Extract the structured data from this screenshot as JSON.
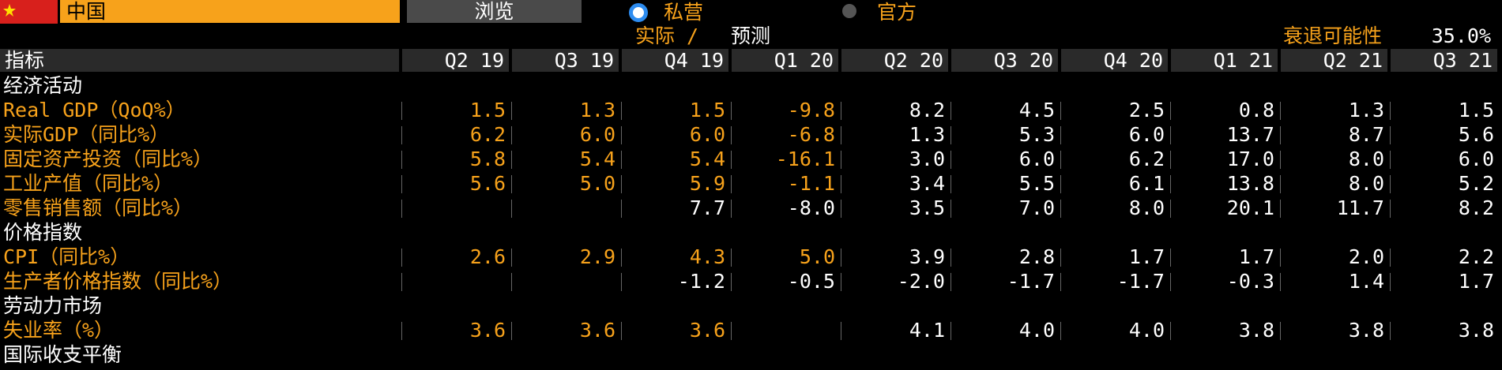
{
  "header": {
    "country": "中国",
    "browse": "浏览",
    "options": [
      "私营",
      "官方"
    ]
  },
  "subheader": {
    "actual": "实际 /",
    "forecast": "预测",
    "recession_label": "衰退可能性",
    "recession_value": "35.0%"
  },
  "table": {
    "actual_color": "#f7a21b",
    "forecast_color": "#ffffff",
    "columns": [
      "指标",
      "Q2 19",
      "Q3 19",
      "Q4 19",
      "Q1 20",
      "Q2 20",
      "Q3 20",
      "Q4 20",
      "Q1 21",
      "Q2 21",
      "Q3 21"
    ],
    "sections": [
      {
        "title": "经济活动",
        "rows": [
          {
            "label": "Real GDP（QoQ%）",
            "values": [
              "1.5",
              "1.3",
              "1.5",
              "-9.8",
              "8.2",
              "4.5",
              "2.5",
              "0.8",
              "1.3",
              "1.5"
            ],
            "actual": [
              true,
              true,
              true,
              true,
              false,
              false,
              false,
              false,
              false,
              false
            ]
          },
          {
            "label": "实际GDP（同比%）",
            "values": [
              "6.2",
              "6.0",
              "6.0",
              "-6.8",
              "1.3",
              "5.3",
              "6.0",
              "13.7",
              "8.7",
              "5.6"
            ],
            "actual": [
              true,
              true,
              true,
              true,
              false,
              false,
              false,
              false,
              false,
              false
            ]
          },
          {
            "label": "固定资产投资（同比%）",
            "values": [
              "5.8",
              "5.4",
              "5.4",
              "-16.1",
              "3.0",
              "6.0",
              "6.2",
              "17.0",
              "8.0",
              "6.0"
            ],
            "actual": [
              true,
              true,
              true,
              true,
              false,
              false,
              false,
              false,
              false,
              false
            ]
          },
          {
            "label": "工业产值（同比%）",
            "values": [
              "5.6",
              "5.0",
              "5.9",
              "-1.1",
              "3.4",
              "5.5",
              "6.1",
              "13.8",
              "8.0",
              "5.2"
            ],
            "actual": [
              true,
              true,
              true,
              true,
              false,
              false,
              false,
              false,
              false,
              false
            ]
          },
          {
            "label": "零售销售额（同比%）",
            "values": [
              null,
              null,
              "7.7",
              "-8.0",
              "3.5",
              "7.0",
              "8.0",
              "20.1",
              "11.7",
              "8.2"
            ],
            "actual": [
              false,
              false,
              false,
              false,
              false,
              false,
              false,
              false,
              false,
              false
            ]
          }
        ]
      },
      {
        "title": "价格指数",
        "rows": [
          {
            "label": "CPI（同比%）",
            "values": [
              "2.6",
              "2.9",
              "4.3",
              "5.0",
              "3.9",
              "2.8",
              "1.7",
              "1.7",
              "2.0",
              "2.2"
            ],
            "actual": [
              true,
              true,
              true,
              true,
              false,
              false,
              false,
              false,
              false,
              false
            ]
          },
          {
            "label": "生产者价格指数（同比%）",
            "values": [
              null,
              null,
              "-1.2",
              "-0.5",
              "-2.0",
              "-1.7",
              "-1.7",
              "-0.3",
              "1.4",
              "1.7"
            ],
            "actual": [
              false,
              false,
              false,
              false,
              false,
              false,
              false,
              false,
              false,
              false
            ]
          }
        ]
      },
      {
        "title": "劳动力市场",
        "rows": [
          {
            "label": "失业率（%）",
            "values": [
              "3.6",
              "3.6",
              "3.6",
              null,
              "4.1",
              "4.0",
              "4.0",
              "3.8",
              "3.8",
              "3.8"
            ],
            "actual": [
              true,
              true,
              true,
              false,
              false,
              false,
              false,
              false,
              false,
              false
            ]
          }
        ]
      },
      {
        "title": "国际收支平衡",
        "rows": []
      }
    ]
  }
}
